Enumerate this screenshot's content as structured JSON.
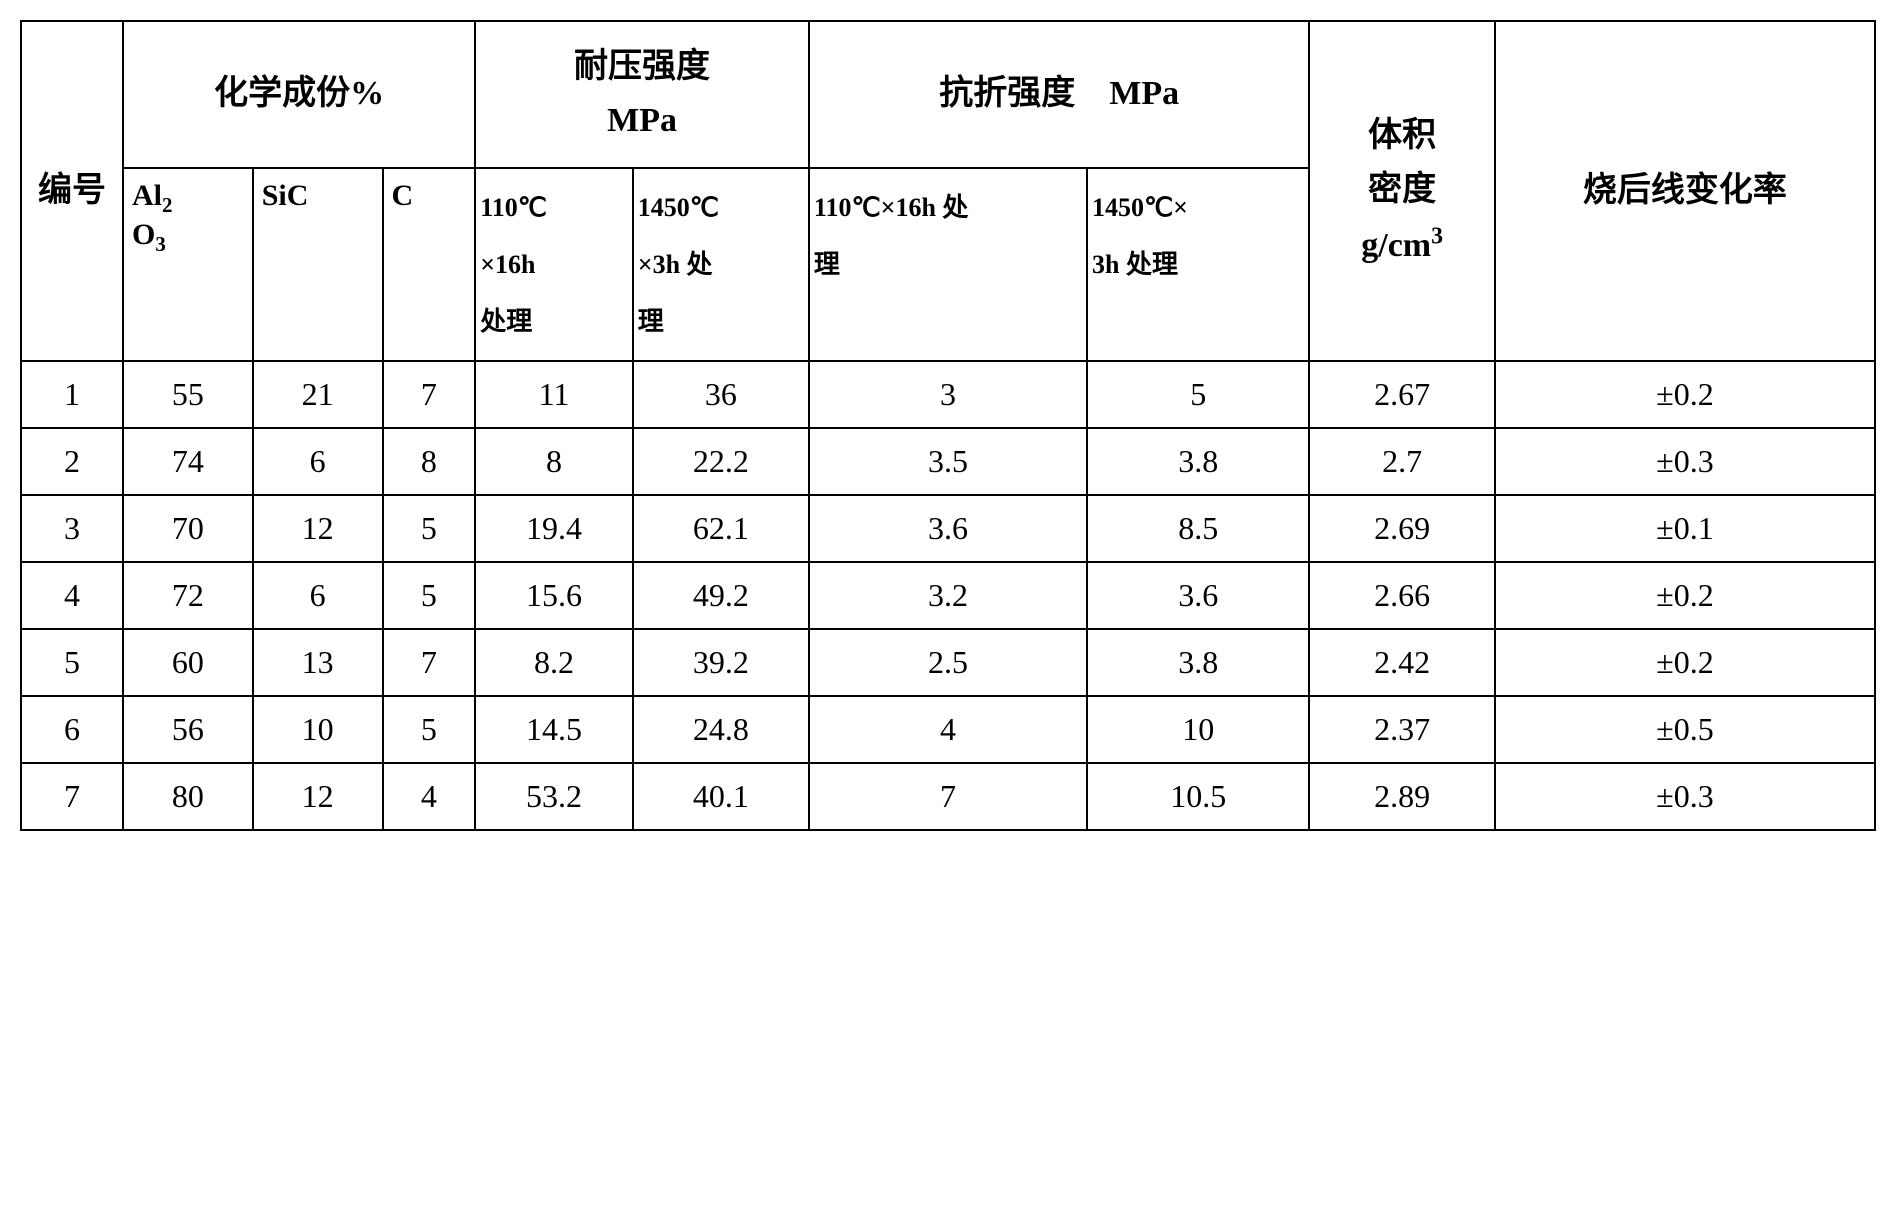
{
  "colors": {
    "border": "#000000",
    "background": "#ffffff",
    "text": "#000000"
  },
  "layout": {
    "col_widths_pct": [
      5.5,
      7,
      7,
      5,
      8.5,
      9.5,
      15,
      12,
      10,
      20.5
    ],
    "font_family": "SimSun",
    "header_main_fontsize": 34,
    "header_sub_fontsize": 26,
    "data_fontsize": 32,
    "border_width": 2
  },
  "headers": {
    "row_label": "编号",
    "chem_group": "化学成份%",
    "chem_al2o3": "Al₂O₃",
    "chem_sic": "SiC",
    "chem_c": "C",
    "compress_group": "耐压强度 MPa",
    "compress_110_line1": "110℃",
    "compress_110_line2": "×16h",
    "compress_110_line3": "处理",
    "compress_1450_line1": "1450℃",
    "compress_1450_line2": "×3h 处",
    "compress_1450_line3": "理",
    "flexural_group": "抗折强度　MPa",
    "flexural_110_line1": "110℃×16h 处",
    "flexural_110_line2": "理",
    "flexural_1450_line1": "1450℃×",
    "flexural_1450_line2": "3h 处理",
    "density_line1": "体积",
    "density_line2": "密度",
    "density_line3": "g/cm³",
    "linechange": "烧后线变化率"
  },
  "rows": [
    {
      "n": "1",
      "al": "55",
      "sic": "21",
      "c": "7",
      "cp110": "11",
      "cp1450": "36",
      "fl110": "3",
      "fl1450": "5",
      "dens": "2.67",
      "lc": "±0.2"
    },
    {
      "n": "2",
      "al": "74",
      "sic": "6",
      "c": "8",
      "cp110": "8",
      "cp1450": "22.2",
      "fl110": "3.5",
      "fl1450": "3.8",
      "dens": "2.7",
      "lc": "±0.3"
    },
    {
      "n": "3",
      "al": "70",
      "sic": "12",
      "c": "5",
      "cp110": "19.4",
      "cp1450": "62.1",
      "fl110": "3.6",
      "fl1450": "8.5",
      "dens": "2.69",
      "lc": "±0.1"
    },
    {
      "n": "4",
      "al": "72",
      "sic": "6",
      "c": "5",
      "cp110": "15.6",
      "cp1450": "49.2",
      "fl110": "3.2",
      "fl1450": "3.6",
      "dens": "2.66",
      "lc": "±0.2"
    },
    {
      "n": "5",
      "al": "60",
      "sic": "13",
      "c": "7",
      "cp110": "8.2",
      "cp1450": "39.2",
      "fl110": "2.5",
      "fl1450": "3.8",
      "dens": "2.42",
      "lc": "±0.2"
    },
    {
      "n": "6",
      "al": "56",
      "sic": "10",
      "c": "5",
      "cp110": "14.5",
      "cp1450": "24.8",
      "fl110": "4",
      "fl1450": "10",
      "dens": "2.37",
      "lc": "±0.5"
    },
    {
      "n": "7",
      "al": "80",
      "sic": "12",
      "c": "4",
      "cp110": "53.2",
      "cp1450": "40.1",
      "fl110": "7",
      "fl1450": "10.5",
      "dens": "2.89",
      "lc": "±0.3"
    }
  ]
}
